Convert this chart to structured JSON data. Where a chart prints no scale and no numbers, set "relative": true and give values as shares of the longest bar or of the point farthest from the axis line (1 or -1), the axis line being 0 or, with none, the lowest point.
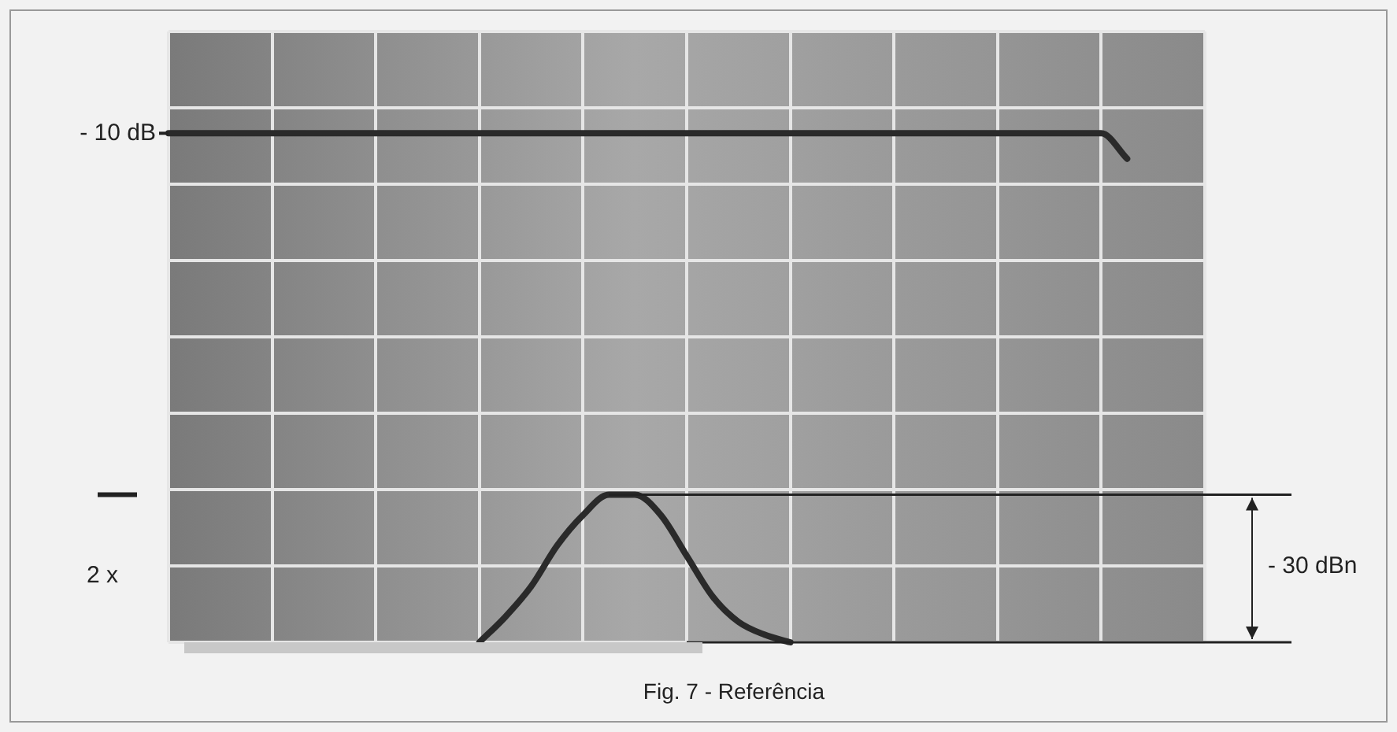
{
  "chart_data": {
    "type": "line",
    "relative": true,
    "grid": true,
    "legend": false,
    "marker": "none",
    "line_style": "solid",
    "categories": [
      null,
      null,
      null,
      null,
      null,
      null,
      null,
      null,
      null,
      null,
      null,
      null,
      null,
      null,
      null,
      null,
      null,
      null,
      null,
      null,
      null,
      null,
      null,
      null,
      null,
      null,
      null,
      null,
      null,
      null,
      null,
      null,
      null,
      null,
      null,
      null,
      null,
      null,
      null,
      null,
      null
    ],
    "series": [
      {
        "color": "#2a2a2a",
        "values": [
          1,
          1,
          1,
          1,
          1,
          1,
          1,
          1,
          1,
          1,
          1,
          1,
          1,
          1,
          1,
          1,
          1,
          1,
          1,
          1,
          1,
          1,
          1,
          1,
          1,
          1,
          1,
          1,
          1,
          1,
          1,
          1,
          1,
          1,
          1,
          1,
          1,
          0.95,
          null,
          null,
          null
        ]
      },
      {
        "color": "#2a2a2a",
        "values": [
          null,
          null,
          null,
          null,
          null,
          null,
          null,
          null,
          null,
          null,
          null,
          null,
          0,
          0.05,
          0.11,
          0.19,
          0.25,
          0.29,
          0.29,
          0.25,
          0.17,
          0.09,
          0.04,
          0.015,
          0,
          null,
          null,
          null,
          null,
          null,
          null,
          null,
          null,
          null,
          null,
          null,
          null,
          null,
          null,
          null,
          null
        ]
      }
    ],
    "ref_lines": [
      {
        "axis": "y",
        "value": 0.29
      }
    ],
    "annotations": [
      "- 10 dB",
      "2 x",
      "- 30 dBn",
      "Fig. 7 - Referência"
    ]
  }
}
